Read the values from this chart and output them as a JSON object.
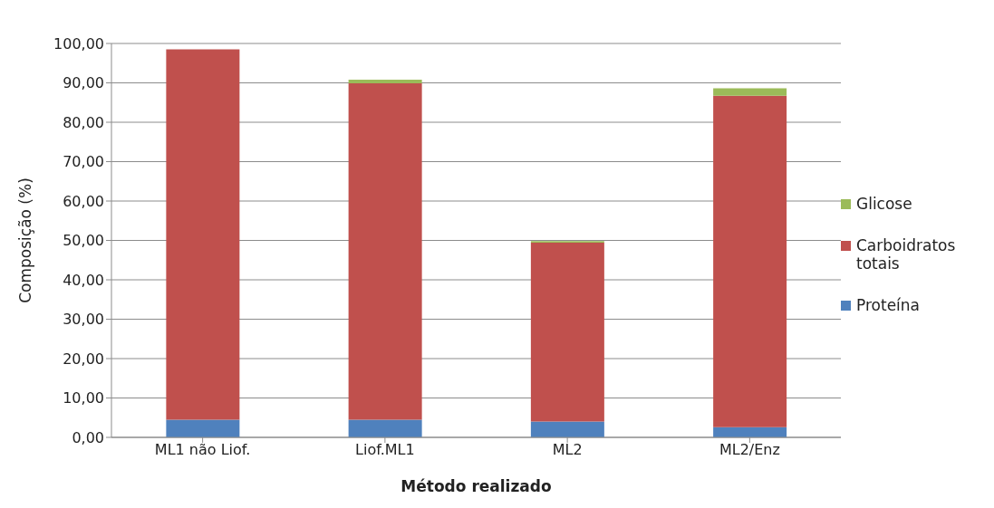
{
  "chart_data": {
    "type": "bar",
    "stacked": true,
    "xlabel": "Método realizado",
    "ylabel": "Composição (%)",
    "categories": [
      "ML1 não Liof.",
      "Liof.ML1",
      "ML2",
      "ML2/Enz"
    ],
    "series": [
      {
        "name": "Proteína",
        "color": "#4f81bd",
        "values": [
          4.5,
          4.5,
          4.0,
          2.6
        ]
      },
      {
        "name": "Carboidratos totais",
        "color": "#c0504d",
        "values": [
          94.0,
          85.4,
          45.4,
          84.1
        ]
      },
      {
        "name": "Glicose",
        "color": "#9bbb59",
        "values": [
          0,
          0.9,
          0.4,
          1.9
        ]
      }
    ],
    "ylim": [
      0,
      100
    ],
    "yticks": [
      {
        "value": 0,
        "label": "0,00"
      },
      {
        "value": 10,
        "label": "10,00"
      },
      {
        "value": 20,
        "label": "20,00"
      },
      {
        "value": 30,
        "label": "30,00"
      },
      {
        "value": 40,
        "label": "40,00"
      },
      {
        "value": 50,
        "label": "50,00"
      },
      {
        "value": 60,
        "label": "60,00"
      },
      {
        "value": 70,
        "label": "70,00"
      },
      {
        "value": 80,
        "label": "80,00"
      },
      {
        "value": 90,
        "label": "90,00"
      },
      {
        "value": 100,
        "label": "100,00"
      }
    ],
    "grid": "y",
    "legend": "right"
  }
}
